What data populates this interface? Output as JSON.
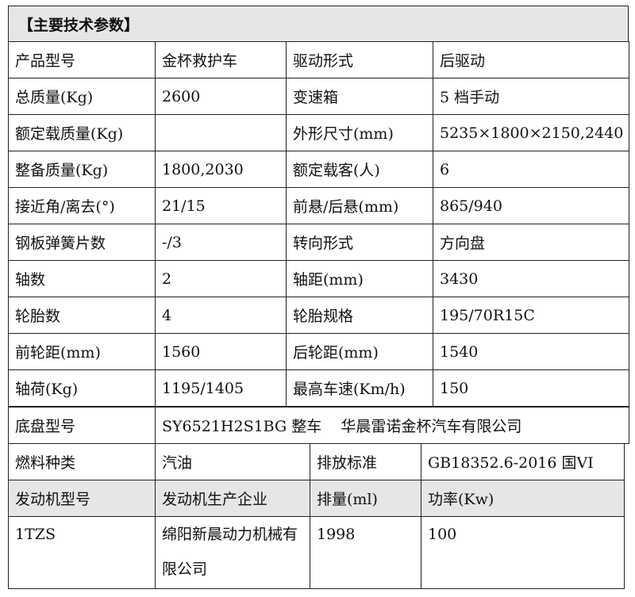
{
  "title": "【主要技术参数】",
  "rows": [
    [
      "产品型号",
      "金杯救护车",
      "驱动形式",
      "后驱动"
    ],
    [
      "总质量(Kg)",
      "2600",
      "变速箱",
      "5 档手动"
    ],
    [
      "额定载质量(Kg)",
      "",
      "外形尺寸(mm)",
      "5235×1800×2150,2440"
    ],
    [
      "整备质量(Kg)",
      "1800,2030",
      "额定载客(人)",
      "6"
    ],
    [
      "接近角/离去(°)",
      "21/15",
      "前悬/后悬(mm)",
      "865/940"
    ],
    [
      "钢板弹簧片数",
      "-/3",
      "转向形式",
      "方向盘"
    ],
    [
      "轴数",
      "2",
      "轴距(mm)",
      "3430"
    ],
    [
      "轮胎数",
      "4",
      "轮胎规格",
      "195/70R15C"
    ],
    [
      "前轮距(mm)",
      "1560",
      "后轮距(mm)",
      "1540"
    ],
    [
      "轴荷(Kg)",
      "1195/1405",
      "最高车速(Km/h)",
      "150"
    ]
  ],
  "chassis": {
    "label": "底盘型号",
    "value": "SY6521H2S1BG 整车    华晨雷诺金杯汽车有限公司"
  },
  "fuel": [
    "燃料种类",
    "汽油",
    "排放标准",
    "GB18352.6-2016 国VI"
  ],
  "engine_header": [
    "发动机型号",
    "发动机生产企业",
    "排量(ml)",
    "功率(Kw)"
  ],
  "engine_values": [
    "1TZS",
    "绵阳新晨动力机械有限公司",
    "1998",
    "100"
  ]
}
